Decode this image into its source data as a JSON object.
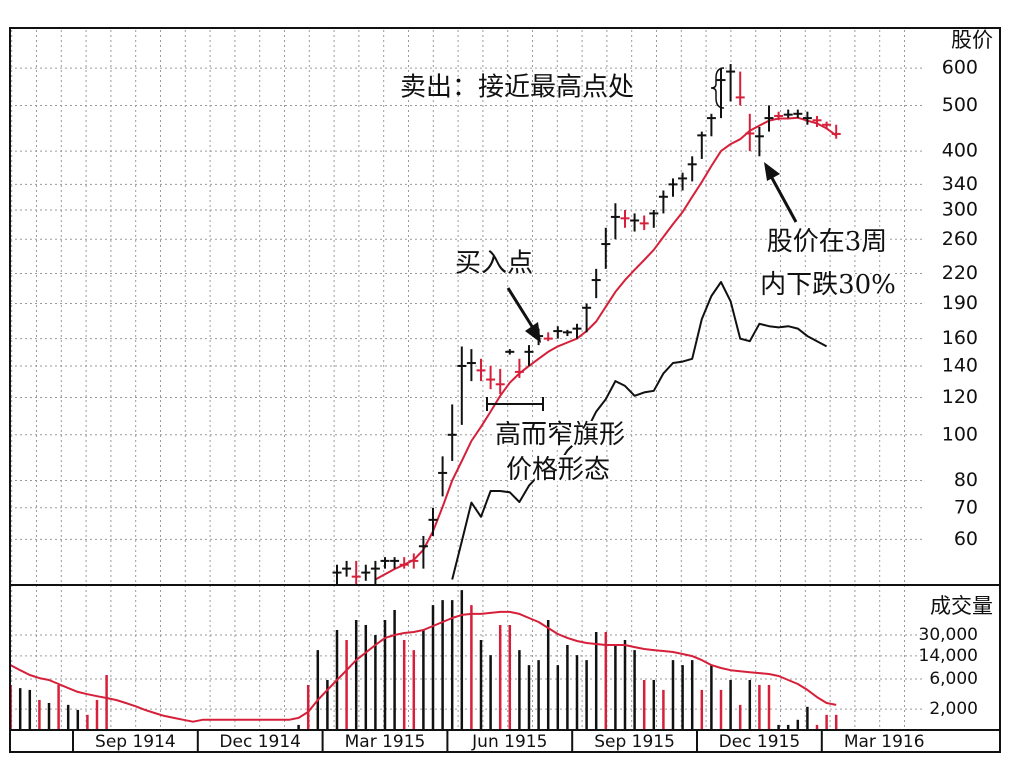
{
  "chart_data": [
    {
      "type": "hlc",
      "y_label": "股价",
      "log_scale": true,
      "grid": true,
      "ylim": [
        48,
        730
      ],
      "yticks": [
        60,
        70,
        80,
        100,
        120,
        140,
        160,
        190,
        220,
        260,
        300,
        340,
        400,
        500,
        600
      ],
      "high": [
        null,
        null,
        null,
        null,
        null,
        null,
        null,
        null,
        null,
        null,
        null,
        null,
        null,
        null,
        null,
        null,
        null,
        null,
        null,
        null,
        null,
        null,
        null,
        null,
        null,
        null,
        null,
        null,
        null,
        null,
        null,
        null,
        null,
        null,
        53,
        54,
        54,
        53,
        54,
        55,
        55,
        55,
        56,
        61,
        70,
        90,
        116,
        154,
        152,
        145,
        140,
        138,
        152,
        145,
        155,
        168,
        165,
        170,
        167,
        172,
        190,
        225,
        275,
        310,
        300,
        295,
        292,
        300,
        330,
        350,
        360,
        390,
        440,
        480,
        600,
        612,
        590,
        480,
        450,
        500,
        485,
        490,
        490,
        485,
        475,
        462,
        455,
        null,
        null,
        null,
        null,
        null
      ],
      "low": [
        null,
        null,
        null,
        null,
        null,
        null,
        null,
        null,
        null,
        null,
        null,
        null,
        null,
        null,
        null,
        null,
        null,
        null,
        null,
        null,
        null,
        null,
        null,
        null,
        null,
        null,
        null,
        null,
        null,
        null,
        null,
        null,
        null,
        null,
        48,
        50,
        48,
        49,
        48,
        52,
        52,
        52,
        52,
        52,
        61,
        74,
        88,
        105,
        130,
        130,
        125,
        122,
        148,
        132,
        140,
        155,
        158,
        160,
        162,
        160,
        165,
        195,
        225,
        260,
        275,
        270,
        272,
        275,
        295,
        320,
        330,
        345,
        385,
        430,
        470,
        510,
        500,
        400,
        390,
        440,
        465,
        470,
        470,
        455,
        450,
        445,
        425,
        null,
        null,
        null,
        null,
        null
      ],
      "close": [
        null,
        null,
        null,
        null,
        null,
        null,
        null,
        null,
        null,
        null,
        null,
        null,
        null,
        null,
        null,
        null,
        null,
        null,
        null,
        null,
        null,
        null,
        null,
        null,
        null,
        null,
        null,
        null,
        null,
        null,
        null,
        null,
        null,
        null,
        51,
        52,
        50,
        51,
        52,
        54,
        54,
        53,
        54,
        58,
        66,
        83,
        100,
        140,
        142,
        137,
        131,
        128,
        150,
        136,
        150,
        162,
        160,
        166,
        165,
        168,
        186,
        213,
        254,
        290,
        288,
        285,
        281,
        295,
        320,
        340,
        350,
        375,
        432,
        470,
        566,
        590,
        520,
        436,
        430,
        470,
        475,
        478,
        480,
        470,
        465,
        455,
        435,
        null,
        null,
        null,
        null,
        null
      ],
      "bar_colors": [
        null,
        null,
        null,
        null,
        null,
        null,
        null,
        null,
        null,
        null,
        null,
        null,
        null,
        null,
        null,
        null,
        null,
        null,
        null,
        null,
        null,
        null,
        null,
        null,
        null,
        null,
        null,
        null,
        null,
        null,
        null,
        null,
        null,
        null,
        "#111111",
        "#111111",
        "#d6203a",
        "#111111",
        "#111111",
        "#111111",
        "#111111",
        "#d6203a",
        "#d6203a",
        "#111111",
        "#111111",
        "#111111",
        "#111111",
        "#111111",
        "#111111",
        "#d6203a",
        "#d6203a",
        "#d6203a",
        "#111111",
        "#d6203a",
        "#111111",
        "#111111",
        "#d6203a",
        "#111111",
        "#111111",
        "#111111",
        "#111111",
        "#111111",
        "#111111",
        "#111111",
        "#d6203a",
        "#111111",
        "#d6203a",
        "#111111",
        "#111111",
        "#111111",
        "#111111",
        "#111111",
        "#111111",
        "#111111",
        "#111111",
        "#111111",
        "#d6203a",
        "#d6203a",
        "#111111",
        "#111111",
        "#d6203a",
        "#111111",
        "#111111",
        "#111111",
        "#d6203a",
        "#d6203a",
        "#d6203a",
        null,
        null,
        null,
        null,
        null
      ],
      "lines": [
        {
          "color": "#d6203a",
          "values": [
            null,
            null,
            null,
            null,
            null,
            null,
            null,
            null,
            null,
            null,
            null,
            null,
            null,
            null,
            null,
            null,
            null,
            null,
            null,
            null,
            null,
            null,
            null,
            null,
            null,
            null,
            null,
            null,
            null,
            null,
            null,
            null,
            null,
            null,
            null,
            null,
            null,
            null,
            49.3,
            50.6,
            51.9,
            53,
            54.3,
            57,
            62.4,
            70.3,
            80,
            88,
            97,
            104,
            112,
            121,
            129,
            135,
            140,
            145,
            150,
            154,
            157,
            160,
            166,
            174,
            187,
            201,
            213,
            224,
            235,
            247,
            263,
            280,
            297,
            320,
            344,
            372,
            400,
            414,
            424,
            442,
            453,
            464,
            469,
            469,
            471,
            464,
            458,
            447,
            432,
            null,
            null,
            null,
            null,
            null
          ]
        },
        {
          "color": "#111111",
          "values": [
            null,
            null,
            null,
            null,
            null,
            null,
            null,
            null,
            null,
            null,
            null,
            null,
            null,
            null,
            null,
            null,
            null,
            null,
            null,
            null,
            null,
            null,
            null,
            null,
            null,
            null,
            null,
            null,
            null,
            null,
            null,
            null,
            null,
            null,
            null,
            null,
            null,
            null,
            null,
            null,
            null,
            null,
            null,
            null,
            null,
            null,
            49.3,
            59.4,
            71.8,
            67,
            76,
            76,
            75.5,
            72,
            78,
            82,
            83,
            86,
            92.6,
            97,
            102,
            112,
            119,
            130,
            127,
            121,
            123,
            124,
            135,
            142,
            143,
            145,
            176,
            197,
            211,
            192,
            160,
            158,
            172,
            170,
            169,
            170,
            168,
            162,
            158,
            154,
            null,
            null,
            null,
            null,
            null,
            null
          ]
        }
      ],
      "annotations": [
        "卖出：接近最高点处",
        "买入点",
        "高而窄旗形",
        "价格形态",
        "股价在3周",
        "内下跌30%"
      ]
    },
    {
      "type": "bar",
      "y_label": "成交量",
      "log_scale": true,
      "grid": true,
      "ylim": [
        930,
        187000
      ],
      "yticks": [
        {
          "value": 2000,
          "label": "2,000"
        },
        {
          "value": 6000,
          "label": "6,000"
        },
        {
          "value": 14000,
          "label": "14,000"
        },
        {
          "value": 30000,
          "label": "30,000"
        }
      ],
      "categories": [
        null,
        null,
        null,
        null,
        null,
        null,
        null,
        null,
        null,
        null,
        null,
        null,
        null,
        "Sep 1914",
        null,
        null,
        null,
        null,
        null,
        null,
        null,
        null,
        null,
        null,
        null,
        null,
        "Dec 1914",
        null,
        null,
        null,
        null,
        null,
        null,
        null,
        null,
        null,
        null,
        null,
        null,
        "Mar 1915",
        null,
        null,
        null,
        null,
        null,
        null,
        null,
        null,
        null,
        null,
        null,
        null,
        "Jun 1915",
        null,
        null,
        null,
        null,
        null,
        null,
        null,
        null,
        null,
        null,
        null,
        null,
        "Sep 1915",
        null,
        null,
        null,
        null,
        null,
        null,
        null,
        null,
        null,
        null,
        null,
        null,
        "Dec 1915",
        null,
        null,
        null,
        null,
        null,
        null,
        null,
        null,
        null,
        null,
        null,
        null,
        "Mar 1916"
      ],
      "values": [
        4830,
        4300,
        4030,
        2790,
        2500,
        4830,
        2330,
        1940,
        1620,
        2790,
        6950,
        null,
        null,
        null,
        null,
        null,
        null,
        null,
        null,
        null,
        null,
        null,
        null,
        null,
        null,
        null,
        null,
        null,
        null,
        null,
        1120,
        4830,
        17300,
        5800,
        36000,
        25000,
        51900,
        43300,
        30000,
        51900,
        74800,
        25000,
        17300,
        36000,
        89700,
        107700,
        107700,
        155000,
        89700,
        25000,
        14400,
        43300,
        43300,
        17300,
        10000,
        12000,
        51900,
        10000,
        20800,
        14400,
        12000,
        33500,
        33500,
        20800,
        25000,
        17300,
        5800,
        5800,
        4030,
        12000,
        10000,
        12000,
        4030,
        10000,
        4030,
        5800,
        2330,
        5800,
        4830,
        4830,
        1120,
        1120,
        1350,
        2170,
        1120,
        1620,
        1620,
        null,
        null,
        null,
        null,
        null
      ],
      "bar_colors": [
        "#d6203a",
        "#111111",
        "#111111",
        "#d6203a",
        "#111111",
        "#d6203a",
        "#111111",
        "#111111",
        "#d6203a",
        "#d6203a",
        "#d6203a",
        null,
        null,
        null,
        null,
        null,
        null,
        null,
        null,
        null,
        null,
        null,
        null,
        null,
        null,
        null,
        null,
        null,
        null,
        null,
        "#111111",
        "#d6203a",
        "#111111",
        "#111111",
        "#111111",
        "#d6203a",
        "#111111",
        "#111111",
        "#111111",
        "#111111",
        "#111111",
        "#d6203a",
        "#d6203a",
        "#111111",
        "#111111",
        "#111111",
        "#111111",
        "#111111",
        "#d6203a",
        "#111111",
        "#111111",
        "#d6203a",
        "#d6203a",
        "#111111",
        "#111111",
        "#111111",
        "#111111",
        "#111111",
        "#111111",
        "#111111",
        "#111111",
        "#111111",
        "#d6203a",
        "#111111",
        "#111111",
        "#111111",
        "#d6203a",
        "#111111",
        "#d6203a",
        "#111111",
        "#111111",
        "#111111",
        "#d6203a",
        "#111111",
        "#d6203a",
        "#111111",
        "#d6203a",
        "#111111",
        "#d6203a",
        "#d6203a",
        "#111111",
        "#111111",
        "#111111",
        "#111111",
        "#d6203a",
        "#d6203a",
        "#d6203a",
        null,
        null,
        null,
        null,
        null
      ],
      "lines": [
        {
          "color": "#d6203a",
          "values": [
            10000,
            8300,
            6950,
            6200,
            5800,
            5000,
            4300,
            3750,
            3450,
            3200,
            3000,
            2790,
            2500,
            2220,
            1940,
            1730,
            1560,
            1450,
            1350,
            1260,
            1350,
            1350,
            1350,
            1350,
            1350,
            1350,
            1350,
            1350,
            1350,
            1350,
            1450,
            1800,
            2790,
            4030,
            5800,
            8300,
            12000,
            15800,
            20800,
            27000,
            30000,
            32300,
            33500,
            36000,
            41700,
            48400,
            56000,
            62600,
            64900,
            64900,
            67400,
            69900,
            69900,
            64900,
            56000,
            48400,
            38800,
            31100,
            27000,
            24100,
            22400,
            21600,
            20800,
            20800,
            20800,
            19300,
            18000,
            17300,
            16700,
            16100,
            15000,
            13900,
            12000,
            10000,
            8990,
            8300,
            8000,
            7700,
            7450,
            7200,
            6700,
            5800,
            5000,
            4030,
            3100,
            2500,
            2330,
            null,
            null,
            null,
            null,
            null
          ]
        }
      ]
    }
  ]
}
